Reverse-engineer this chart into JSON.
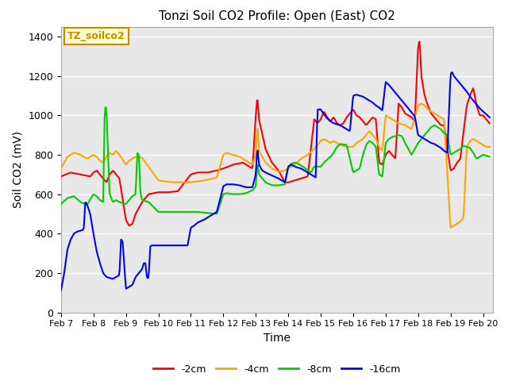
{
  "title": "Tonzi Soil CO2 Profile: Open (East) CO2",
  "xlabel": "Time",
  "ylabel": "Soil CO2 (mV)",
  "ylim": [
    0,
    1450
  ],
  "yticks": [
    0,
    200,
    400,
    600,
    800,
    1000,
    1200,
    1400
  ],
  "xlim": [
    7.0,
    20.3
  ],
  "xtick_labels": [
    "Feb 7",
    "Feb 8",
    "Feb 9",
    "Feb 10",
    "Feb 11",
    "Feb 12",
    "Feb 13",
    "Feb 14",
    "Feb 15",
    "Feb 16",
    "Feb 17",
    "Feb 18",
    "Feb 19",
    "Feb 20"
  ],
  "xtick_positions": [
    7,
    8,
    9,
    10,
    11,
    12,
    13,
    14,
    15,
    16,
    17,
    18,
    19,
    20
  ],
  "colors": {
    "red": "#ff0000",
    "orange": "#ffa500",
    "green": "#00cc00",
    "blue": "#0000ff"
  },
  "legend_labels": [
    "-2cm",
    "-4cm",
    "-8cm",
    "-16cm"
  ],
  "legend_colors": [
    "#ff0000",
    "#ffa500",
    "#00cc00",
    "#0000ff"
  ],
  "watermark_text": "TZ_soilco2",
  "watermark_bg": "#ffffcc",
  "watermark_border": "#cc8800",
  "background_color": "#e8e8e8",
  "grid_color": "#ffffff",
  "band_colors": [
    "#dcdcdc",
    "#e8e8e8"
  ]
}
